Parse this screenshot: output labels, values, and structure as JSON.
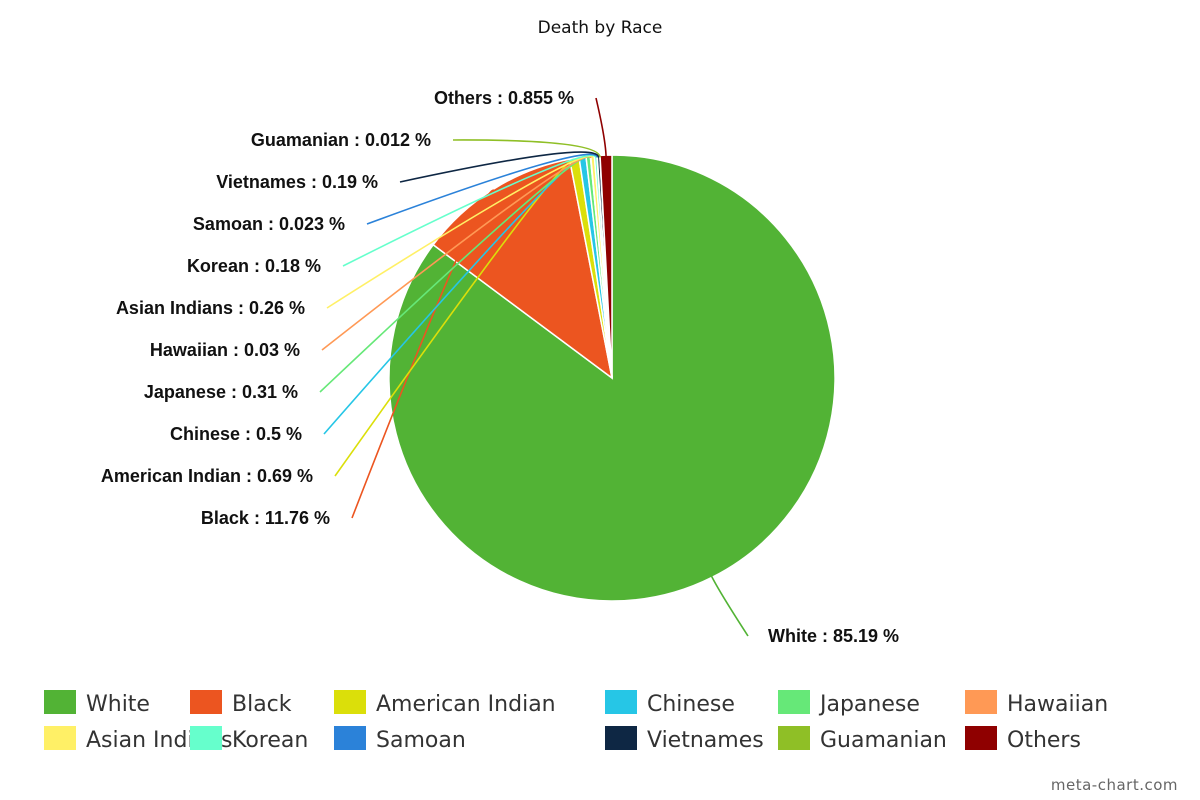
{
  "credit": "meta-chart.com",
  "chart_data": {
    "type": "pie",
    "title": "Death by Race",
    "label_format": "{name} : {value} %",
    "slices": [
      {
        "name": "White",
        "value": 85.19,
        "color": "#52b335"
      },
      {
        "name": "Black",
        "value": 11.76,
        "color": "#ec5520"
      },
      {
        "name": "American Indian",
        "value": 0.69,
        "color": "#dbdf0a"
      },
      {
        "name": "Chinese",
        "value": 0.5,
        "color": "#26c6e6"
      },
      {
        "name": "Japanese",
        "value": 0.31,
        "color": "#66e878"
      },
      {
        "name": "Hawaiian",
        "value": 0.03,
        "color": "#ff9955"
      },
      {
        "name": "Asian Indians",
        "value": 0.26,
        "color": "#fff066"
      },
      {
        "name": "Korean",
        "value": 0.18,
        "color": "#66ffcc"
      },
      {
        "name": "Samoan",
        "value": 0.023,
        "color": "#2b82d9"
      },
      {
        "name": "Vietnames",
        "value": 0.19,
        "color": "#0e2744"
      },
      {
        "name": "Guamanian",
        "value": 0.012,
        "color": "#8fbf26"
      },
      {
        "name": "Others",
        "value": 0.855,
        "color": "#8f0000"
      }
    ],
    "legend": {
      "position": "bottom"
    }
  }
}
